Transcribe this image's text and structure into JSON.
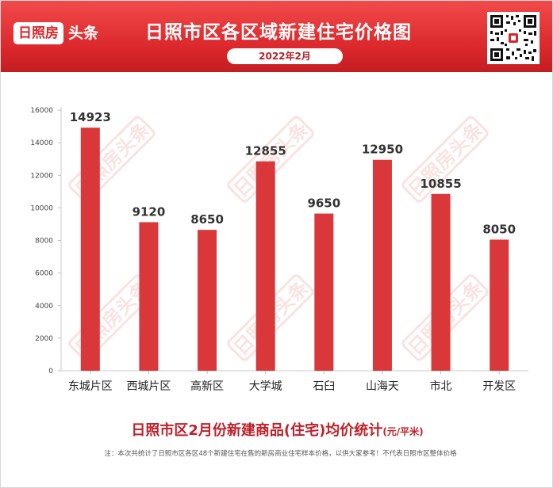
{
  "header": {
    "logo_box": "日照房",
    "logo_text": "头条",
    "title": "日照市区各区域新建住宅价格图",
    "date": "2022年2月"
  },
  "watermark": {
    "text": "日照房头条"
  },
  "icons": {
    "qr": "qr-code-icon"
  },
  "colors": {
    "bar": "#d9373a",
    "header": "#d9262a",
    "accent": "#c0202a"
  },
  "chart_data": {
    "type": "bar",
    "title": "日照市区2月份新建商品(住宅)均价统计",
    "unit": "(元/平米)",
    "categories": [
      "东城片区",
      "西城片区",
      "高新区",
      "大学城",
      "石臼",
      "山海天",
      "市北",
      "开发区"
    ],
    "values": [
      14923,
      9120,
      8650,
      12855,
      9650,
      12950,
      10855,
      8050
    ],
    "ylim": [
      0,
      16000
    ],
    "yticks": [
      0,
      2000,
      4000,
      6000,
      8000,
      10000,
      12000,
      14000,
      16000
    ],
    "grid": false,
    "legend": "none"
  },
  "footer": {
    "note": "注：本次共统计了日照市区各区48个新建住宅在售的新房商业住宅样本价格，以供大家参考！不代表日照市区整体价格"
  }
}
